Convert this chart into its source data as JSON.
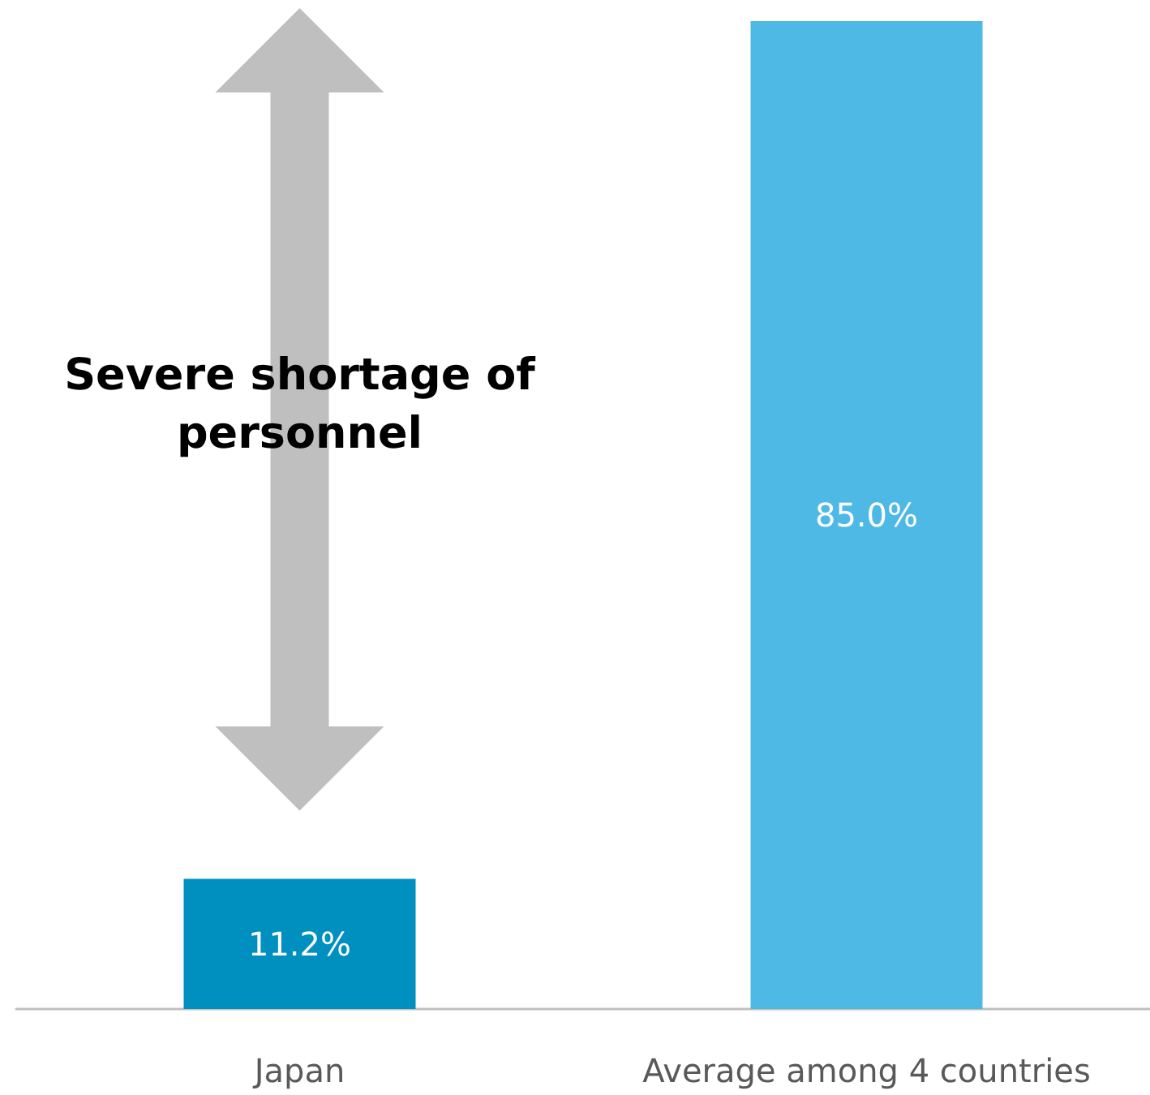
{
  "chart_data": {
    "type": "bar",
    "categories": [
      "Japan",
      "Average among 4 countries"
    ],
    "values": [
      11.2,
      85.0
    ],
    "colors": [
      "#0090c0",
      "#4eb9e5"
    ],
    "value_labels": [
      "11.2%",
      "85.0%"
    ],
    "annotations": [
      "Severe shortage of personnel"
    ]
  }
}
